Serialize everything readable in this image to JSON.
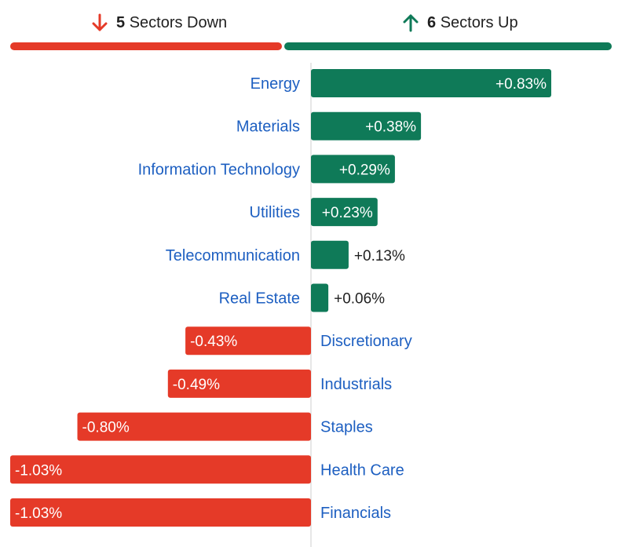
{
  "summary": {
    "down_count": "5",
    "down_text": "Sectors Down",
    "up_count": "6",
    "up_text": "Sectors Up"
  },
  "colors": {
    "up": "#0f7a58",
    "down": "#e53a28",
    "label": "#1d5fc1",
    "value_dark": "#1f1f1f",
    "value_light": "#ffffff",
    "axis": "#cfcfcf"
  },
  "chart_data": {
    "type": "bar",
    "orientation": "horizontal",
    "unit": "%",
    "categories": [
      "Energy",
      "Materials",
      "Information Technology",
      "Utilities",
      "Telecommunication",
      "Real Estate",
      "Discretionary",
      "Industrials",
      "Staples",
      "Health Care",
      "Financials"
    ],
    "values": [
      0.83,
      0.38,
      0.29,
      0.23,
      0.13,
      0.06,
      -0.43,
      -0.49,
      -0.8,
      -1.03,
      -1.03
    ],
    "value_labels": [
      "+0.83%",
      "+0.38%",
      "+0.29%",
      "+0.23%",
      "+0.13%",
      "+0.06%",
      "-0.43%",
      "-0.49%",
      "-0.80%",
      "-1.03%",
      "-1.03%"
    ],
    "xlim": [
      -1.03,
      0.83
    ],
    "grid": false,
    "legend": "none"
  }
}
